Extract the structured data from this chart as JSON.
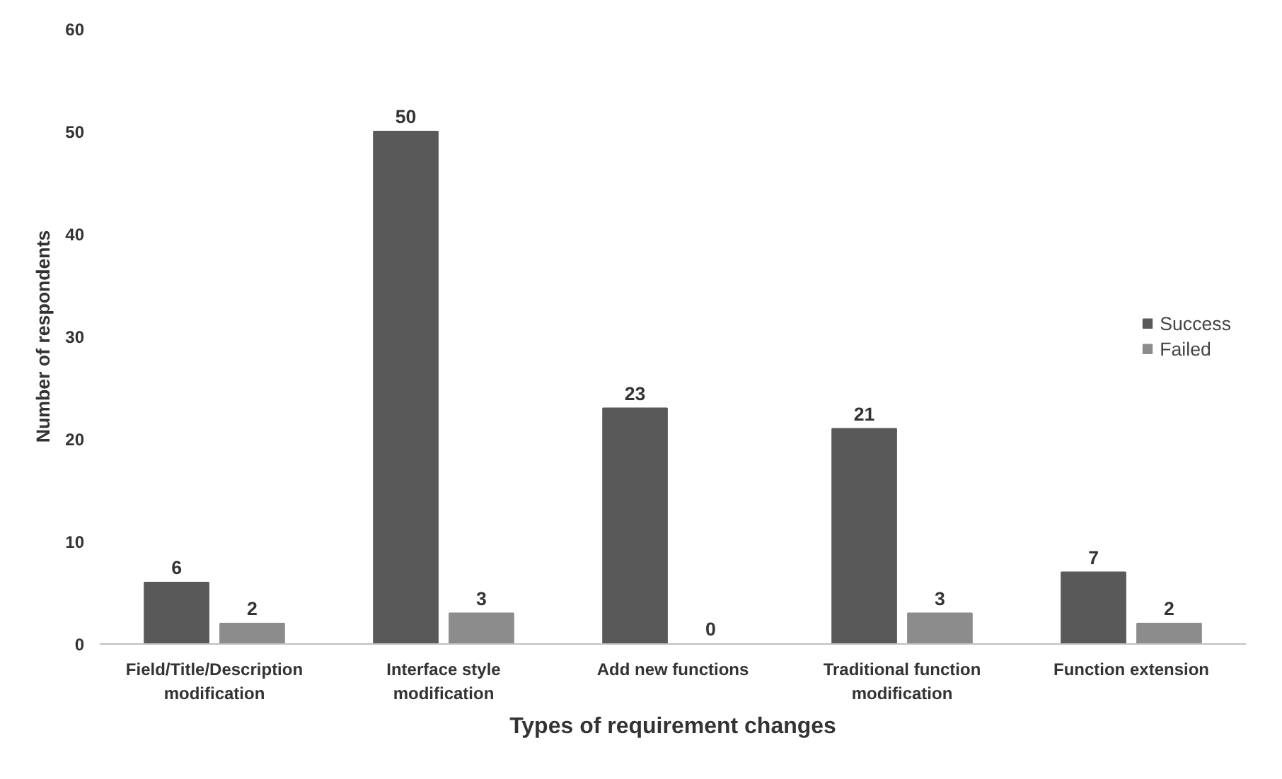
{
  "chart_data": {
    "type": "bar",
    "xlabel": "Types of requirement changes",
    "ylabel": "Number of respondents",
    "categories": [
      "Field/Title/Description modification",
      "Interface style modification",
      "Add new functions",
      "Traditional function modification",
      "Function extension"
    ],
    "series": [
      {
        "name": "Success",
        "color": "#595959",
        "values": [
          6,
          50,
          23,
          21,
          7
        ]
      },
      {
        "name": "Failed",
        "color": "#8c8c8c",
        "values": [
          2,
          3,
          0,
          3,
          2
        ]
      }
    ],
    "ylim": [
      0,
      60
    ],
    "yticks": [
      0,
      10,
      20,
      30,
      40,
      50,
      60
    ],
    "grid": false,
    "legend": "right",
    "data_labels": true
  }
}
